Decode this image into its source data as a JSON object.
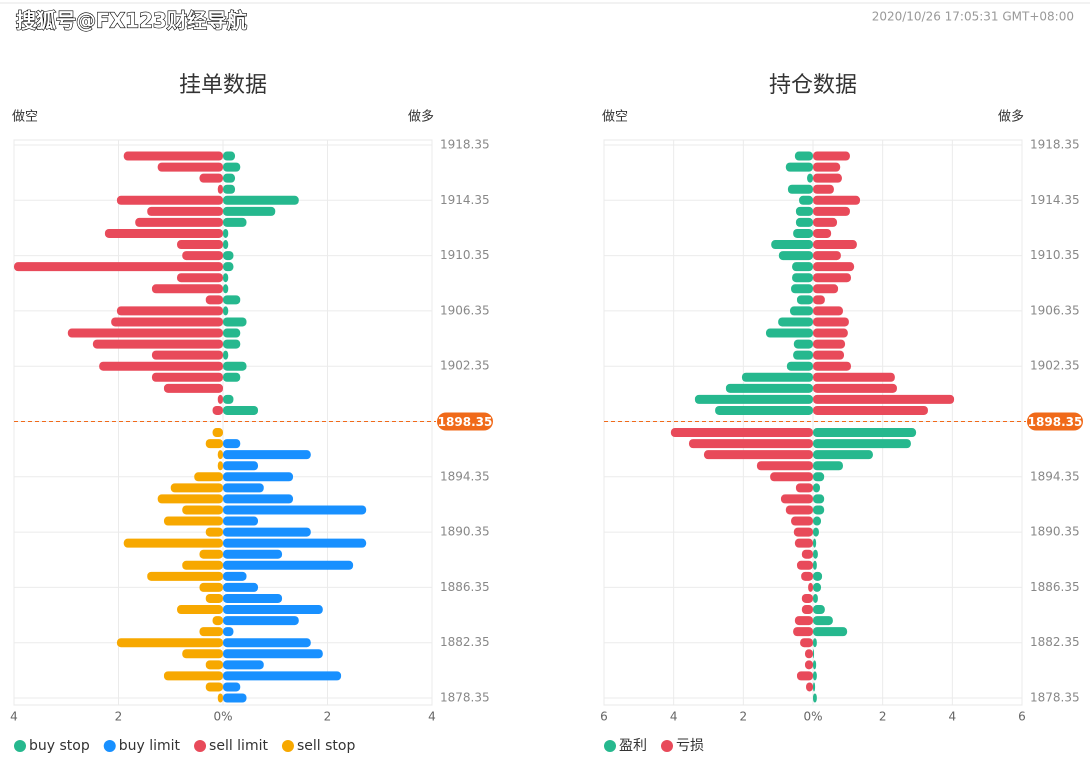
{
  "header": {
    "watermark": "搜狐号@FX123财经导航",
    "timestamp": "2020/10/26 17:05:31 GMT+08:00"
  },
  "chart_data": [
    {
      "type": "bar",
      "orientation": "horizontal",
      "title": "挂单数据",
      "left_label": "做空",
      "right_label": "做多",
      "grid": true,
      "legend": "bottom-left",
      "levels": [
        1917.55,
        1916.75,
        1915.95,
        1915.15,
        1914.35,
        1913.55,
        1912.75,
        1911.95,
        1911.15,
        1910.35,
        1909.55,
        1908.75,
        1907.95,
        1907.15,
        1906.35,
        1905.55,
        1904.75,
        1903.95,
        1903.15,
        1902.35,
        1901.55,
        1900.75,
        1899.95,
        1899.15,
        1897.55,
        1896.75,
        1895.95,
        1895.15,
        1894.35,
        1893.55,
        1892.75,
        1891.95,
        1891.15,
        1890.35,
        1889.55,
        1888.75,
        1887.95,
        1887.15,
        1886.35,
        1885.55,
        1884.75,
        1883.95,
        1883.15,
        1882.35,
        1881.55,
        1880.75,
        1879.95,
        1879.15,
        1878.35
      ],
      "current_price": 1898.35,
      "xlim": [
        -4,
        4
      ],
      "xticks": [
        {
          "value": -4,
          "label": "4"
        },
        {
          "value": -2,
          "label": "2"
        },
        {
          "value": 0,
          "label": "0%"
        },
        2,
        4
      ],
      "ylim": [
        1878.35,
        1918.35
      ],
      "yticks": [
        1878.35,
        1882.35,
        1886.35,
        1890.35,
        1894.35,
        1898.35,
        1902.35,
        1906.35,
        1910.35,
        1914.35,
        1918.35
      ],
      "series": [
        {
          "name": "buy stop",
          "color": "#26b88e",
          "values": [
            0.23,
            0.33,
            0.23,
            0.23,
            1.45,
            1.0,
            0.45,
            0.1,
            0.1,
            0.2,
            0.2,
            0.1,
            0.1,
            0.33,
            0.1,
            0.45,
            0.33,
            0.33,
            0.1,
            0.45,
            0.33,
            null,
            0.2,
            0.67,
            null,
            null,
            null,
            null,
            null,
            null,
            null,
            null,
            null,
            null,
            null,
            null,
            null,
            null,
            null,
            null,
            null,
            null,
            null,
            null,
            null,
            null,
            null,
            null,
            null
          ]
        },
        {
          "name": "buy limit",
          "color": "#1890ff",
          "values": [
            null,
            null,
            null,
            null,
            null,
            null,
            null,
            null,
            null,
            null,
            null,
            null,
            null,
            null,
            null,
            null,
            null,
            null,
            null,
            null,
            null,
            null,
            null,
            null,
            null,
            0.33,
            1.68,
            0.67,
            1.34,
            0.78,
            1.34,
            2.74,
            0.67,
            1.68,
            2.74,
            1.13,
            2.49,
            0.45,
            0.67,
            1.13,
            1.91,
            1.45,
            0.2,
            1.68,
            1.91,
            0.78,
            2.26,
            0.33,
            0.45
          ]
        },
        {
          "name": "sell limit",
          "color": "#e84a5a",
          "values": [
            -1.9,
            -1.25,
            -0.45,
            -0.1,
            -2.03,
            -1.45,
            -1.68,
            -2.26,
            -0.88,
            -0.78,
            -4.0,
            -0.88,
            -1.36,
            -0.33,
            -2.03,
            -2.14,
            -2.97,
            -2.49,
            -1.36,
            -2.37,
            -1.36,
            -1.13,
            -0.1,
            -0.2,
            null,
            null,
            null,
            null,
            null,
            null,
            null,
            null,
            null,
            null,
            null,
            null,
            null,
            null,
            null,
            null,
            null,
            null,
            null,
            null,
            null,
            null,
            null,
            null,
            null
          ]
        },
        {
          "name": "sell stop",
          "color": "#f7a800",
          "values": [
            null,
            null,
            null,
            null,
            null,
            null,
            null,
            null,
            null,
            null,
            null,
            null,
            null,
            null,
            null,
            null,
            null,
            null,
            null,
            null,
            null,
            null,
            null,
            null,
            -0.2,
            -0.33,
            -0.1,
            -0.1,
            -0.55,
            -1.0,
            -1.25,
            -0.78,
            -1.13,
            -0.33,
            -1.9,
            -0.45,
            -0.78,
            -1.45,
            -0.45,
            -0.33,
            -0.88,
            -0.2,
            -0.45,
            -2.03,
            -0.78,
            -0.33,
            -1.13,
            -0.33,
            -0.1
          ]
        }
      ]
    },
    {
      "type": "bar",
      "orientation": "horizontal",
      "title": "持仓数据",
      "left_label": "做空",
      "right_label": "做多",
      "grid": true,
      "legend": "bottom-left",
      "levels": [
        1917.55,
        1916.75,
        1915.95,
        1915.15,
        1914.35,
        1913.55,
        1912.75,
        1911.95,
        1911.15,
        1910.35,
        1909.55,
        1908.75,
        1907.95,
        1907.15,
        1906.35,
        1905.55,
        1904.75,
        1903.95,
        1903.15,
        1902.35,
        1901.55,
        1900.75,
        1899.95,
        1899.15,
        1897.55,
        1896.75,
        1895.95,
        1895.15,
        1894.35,
        1893.55,
        1892.75,
        1891.95,
        1891.15,
        1890.35,
        1889.55,
        1888.75,
        1887.95,
        1887.15,
        1886.35,
        1885.55,
        1884.75,
        1883.95,
        1883.15,
        1882.35,
        1881.55,
        1880.75,
        1879.95,
        1879.15,
        1878.35
      ],
      "current_price": 1898.35,
      "xlim": [
        -6,
        6
      ],
      "xticks": [
        {
          "value": -6,
          "label": "6"
        },
        {
          "value": -4,
          "label": "4"
        },
        {
          "value": -2,
          "label": "2"
        },
        {
          "value": 0,
          "label": "0%"
        },
        2,
        4,
        6
      ],
      "ylim": [
        1878.35,
        1918.35
      ],
      "yticks": [
        1878.35,
        1882.35,
        1886.35,
        1890.35,
        1894.35,
        1898.35,
        1902.35,
        1906.35,
        1910.35,
        1914.35,
        1918.35
      ],
      "series": [
        {
          "name": "盈利",
          "color": "#26b88e",
          "values": [
            -0.52,
            -0.78,
            -0.17,
            -0.72,
            -0.4,
            -0.49,
            -0.49,
            -0.57,
            -1.2,
            -0.98,
            -0.6,
            -0.6,
            -0.63,
            -0.46,
            -0.66,
            -1.0,
            -1.35,
            -0.55,
            -0.57,
            -0.75,
            -2.04,
            -2.5,
            -3.39,
            -2.81,
            2.96,
            2.81,
            1.72,
            0.86,
            0.32,
            0.2,
            0.32,
            0.32,
            0.23,
            0.17,
            0.09,
            0.14,
            0.11,
            0.26,
            0.23,
            0.14,
            0.34,
            0.57,
            0.98,
            0.11,
            0.03,
            0.09,
            0.11,
            0.06,
            0.11
          ]
        },
        {
          "name": "亏损",
          "color": "#e84a5a",
          "values": [
            1.06,
            0.78,
            0.83,
            0.6,
            1.35,
            1.06,
            0.69,
            0.52,
            1.26,
            0.8,
            1.18,
            1.09,
            0.72,
            0.34,
            0.86,
            1.03,
            1.0,
            0.92,
            0.89,
            1.09,
            2.35,
            2.41,
            4.05,
            3.3,
            -4.08,
            -3.56,
            -3.13,
            -1.61,
            -1.23,
            -0.49,
            -0.92,
            -0.78,
            -0.63,
            -0.55,
            -0.52,
            -0.32,
            -0.46,
            -0.34,
            -0.14,
            -0.32,
            -0.32,
            -0.52,
            -0.57,
            -0.37,
            -0.23,
            -0.23,
            -0.46,
            -0.2,
            null
          ]
        }
      ]
    }
  ]
}
